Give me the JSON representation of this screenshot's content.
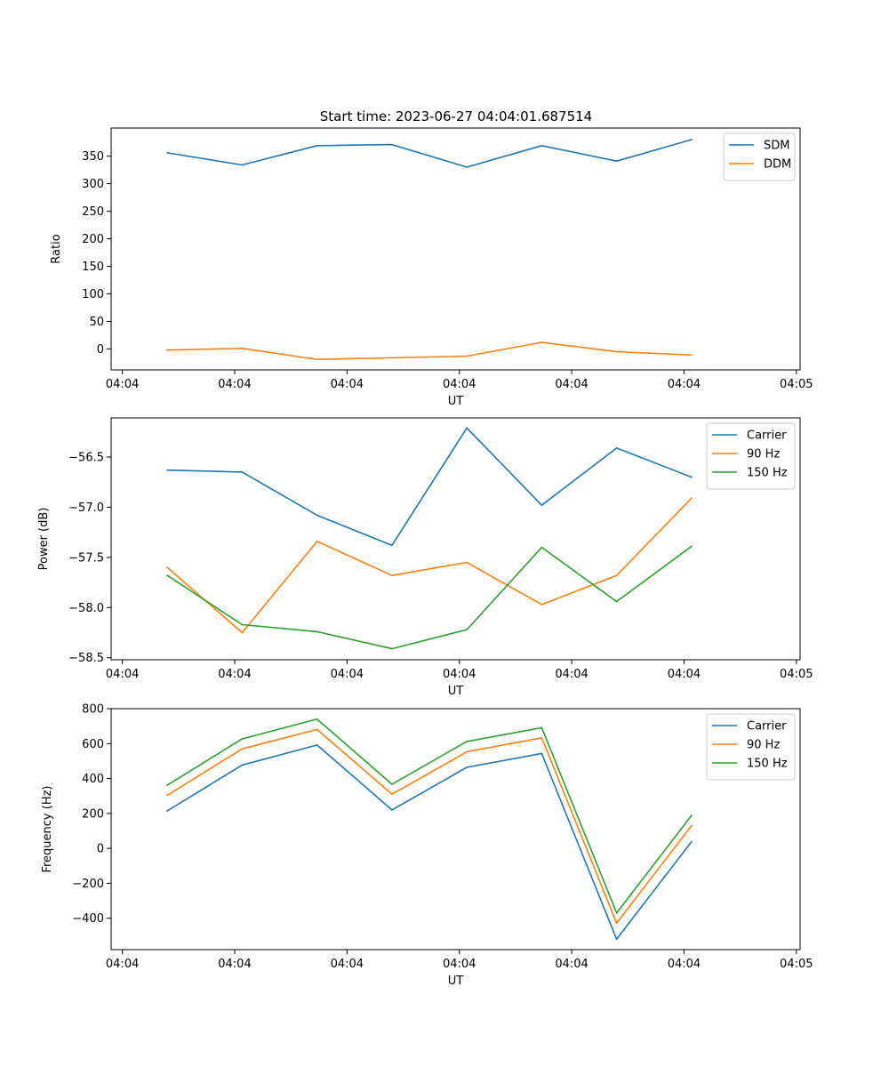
{
  "figure": {
    "title": "Start time: 2023-06-27 04:04:01.687514"
  },
  "chart_data": [
    {
      "type": "line",
      "title": "Start time: 2023-06-27 04:04:01.687514",
      "xlabel": "UT",
      "ylabel": "Ratio",
      "x": [
        0,
        1,
        2,
        3,
        4,
        5,
        6,
        7
      ],
      "xlim": [
        -0.75,
        8.45
      ],
      "x_ticks": [
        -0.6,
        0.9,
        2.4,
        3.9,
        5.4,
        6.9,
        8.4
      ],
      "x_tick_labels": [
        "04:04",
        "04:04",
        "04:04",
        "04:04",
        "04:04",
        "04:04",
        "04:05"
      ],
      "ylim": [
        -38,
        401
      ],
      "y_ticks": [
        0,
        50,
        100,
        150,
        200,
        250,
        300,
        350
      ],
      "y_tick_labels": [
        "0",
        "50",
        "100",
        "150",
        "200",
        "250",
        "300",
        "350"
      ],
      "legend_position": "top-right",
      "grid": false,
      "series": [
        {
          "name": "SDM",
          "color": "#1f77b4",
          "values": [
            356,
            334,
            369,
            371,
            330,
            369,
            341,
            380
          ]
        },
        {
          "name": "DDM",
          "color": "#ff7f0e",
          "values": [
            -2,
            1,
            -19,
            -16,
            -13,
            12,
            -5,
            -11
          ]
        }
      ]
    },
    {
      "type": "line",
      "xlabel": "UT",
      "ylabel": "Power (dB)",
      "x": [
        0,
        1,
        2,
        3,
        4,
        5,
        6,
        7
      ],
      "xlim": [
        -0.75,
        8.45
      ],
      "x_ticks": [
        -0.6,
        0.9,
        2.4,
        3.9,
        5.4,
        6.9,
        8.4
      ],
      "x_tick_labels": [
        "04:04",
        "04:04",
        "04:04",
        "04:04",
        "04:04",
        "04:04",
        "04:05"
      ],
      "ylim": [
        -58.52,
        -56.11
      ],
      "y_ticks": [
        -58.5,
        -58.0,
        -57.5,
        -57.0,
        -56.5
      ],
      "y_tick_labels": [
        "−58.5",
        "−58.0",
        "−57.5",
        "−57.0",
        "−56.5"
      ],
      "legend_position": "top-right",
      "grid": false,
      "series": [
        {
          "name": "Carrier",
          "color": "#1f77b4",
          "values": [
            -56.63,
            -56.65,
            -57.08,
            -57.38,
            -56.21,
            -56.98,
            -56.41,
            -56.7
          ]
        },
        {
          "name": "90 Hz",
          "color": "#ff7f0e",
          "values": [
            -57.6,
            -58.25,
            -57.34,
            -57.68,
            -57.55,
            -57.97,
            -57.68,
            -56.91
          ]
        },
        {
          "name": "150 Hz",
          "color": "#2ca02c",
          "values": [
            -57.68,
            -58.17,
            -58.24,
            -58.41,
            -58.22,
            -57.4,
            -57.94,
            -57.39
          ]
        }
      ]
    },
    {
      "type": "line",
      "xlabel": "UT",
      "ylabel": "Frequency (Hz)",
      "x": [
        0,
        1,
        2,
        3,
        4,
        5,
        6,
        7
      ],
      "xlim": [
        -0.75,
        8.45
      ],
      "x_ticks": [
        -0.6,
        0.9,
        2.4,
        3.9,
        5.4,
        6.9,
        8.4
      ],
      "x_tick_labels": [
        "04:04",
        "04:04",
        "04:04",
        "04:04",
        "04:04",
        "04:04",
        "04:05"
      ],
      "ylim": [
        -580,
        800
      ],
      "y_ticks": [
        -400,
        -200,
        0,
        200,
        400,
        600,
        800
      ],
      "y_tick_labels": [
        "−400",
        "−200",
        "0",
        "200",
        "400",
        "600",
        "800"
      ],
      "legend_position": "top-right",
      "grid": false,
      "series": [
        {
          "name": "Carrier",
          "color": "#1f77b4",
          "values": [
            215,
            477,
            592,
            220,
            464,
            543,
            -520,
            38
          ]
        },
        {
          "name": "90 Hz",
          "color": "#ff7f0e",
          "values": [
            304,
            570,
            681,
            310,
            553,
            633,
            -428,
            130
          ]
        },
        {
          "name": "150 Hz",
          "color": "#2ca02c",
          "values": [
            362,
            627,
            740,
            367,
            612,
            691,
            -370,
            188
          ]
        }
      ]
    }
  ]
}
